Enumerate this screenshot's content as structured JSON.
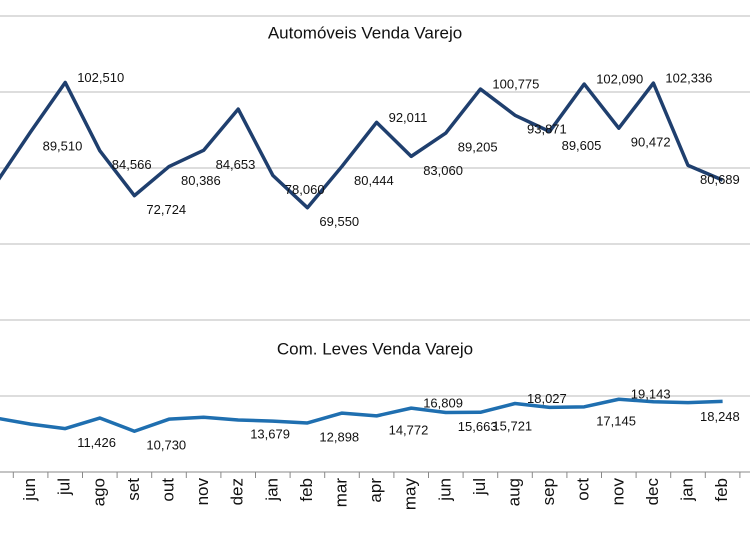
{
  "chart_data": {
    "type": "line",
    "titles": [
      "Automóveis Venda Varejo",
      "Com. Leves Venda Varejo"
    ],
    "categories": [
      null,
      "jun",
      "jul",
      "ago",
      "set",
      "out",
      "nov",
      "dez",
      "jan",
      "feb",
      "mar",
      "apr",
      "may",
      "jun",
      "jul",
      "aug",
      "sep",
      "oct",
      "nov",
      "dec",
      "jan",
      "feb"
    ],
    "series": [
      {
        "color": "#1f3f6e",
        "values": [
          76000,
          89510,
          102510,
          84566,
          72724,
          80386,
          84653,
          95500,
          78060,
          69550,
          80444,
          92011,
          83060,
          89205,
          100775,
          93871,
          89605,
          102090,
          90472,
          102336,
          80689,
          76800
        ],
        "value_labels": [
          null,
          "89,510",
          "102,510",
          "84,566",
          "72,724",
          "80,386",
          "84,653",
          null,
          "78,060",
          "69,550",
          "80,444",
          "92,011",
          "83,060",
          "89,205",
          "100,775",
          "93,871",
          "89,605",
          "102,090",
          "90,472",
          "102,336",
          "80,689",
          null
        ]
      },
      {
        "color": "#1f6fb0",
        "values": [
          14200,
          12600,
          11426,
          14200,
          10730,
          13900,
          14400,
          13679,
          13400,
          12898,
          15500,
          14772,
          16809,
          15663,
          15721,
          18027,
          17000,
          17145,
          19143,
          18500,
          18248,
          18600
        ],
        "value_labels": [
          null,
          null,
          "11,426",
          null,
          "10,730",
          null,
          null,
          "13,679",
          null,
          "12,898",
          null,
          "14,772",
          "16,809",
          "15,663",
          "15,721",
          "18,027",
          null,
          "17,145",
          "19,143",
          null,
          "18,248",
          null
        ]
      }
    ],
    "ylim": [
      0,
      120000
    ],
    "yticks": [
      0,
      20000,
      40000,
      60000,
      80000,
      100000,
      120000
    ],
    "grid": true
  }
}
